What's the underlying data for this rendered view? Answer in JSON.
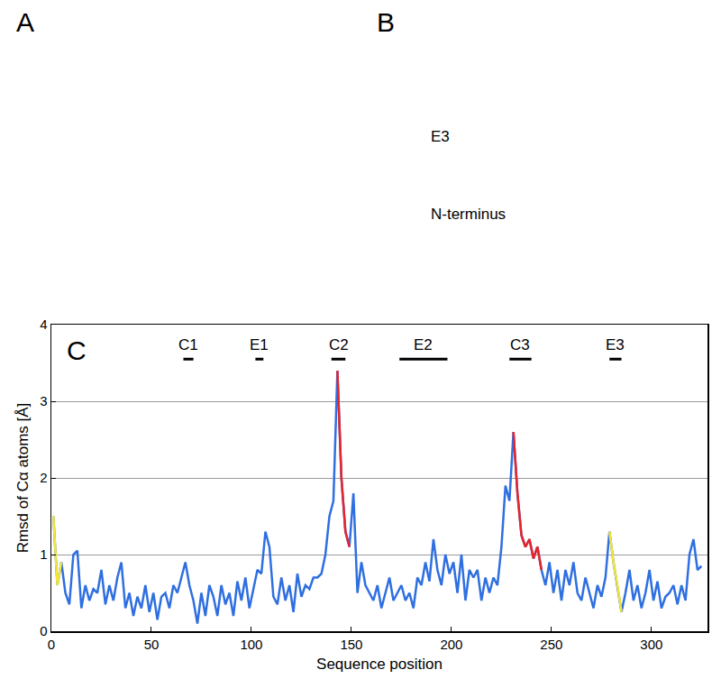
{
  "panel_labels": [
    "A",
    "B"
  ],
  "panel_B_annotations": [
    "E3",
    "N-terminus"
  ],
  "chart_data": {
    "type": "line",
    "panel_label": "C",
    "xlabel": "Sequence position",
    "ylabel": "Rmsd of Cα atoms [Å]",
    "xlim": [
      0,
      328
    ],
    "xticks": [
      0,
      50,
      100,
      150,
      200,
      250,
      300
    ],
    "ylim": [
      0,
      4
    ],
    "yticks": [
      0,
      1,
      2,
      3,
      4
    ],
    "grid": true,
    "regions": [
      {
        "label": "C1",
        "start": 66,
        "end": 71
      },
      {
        "label": "E1",
        "start": 102,
        "end": 106
      },
      {
        "label": "C2",
        "start": 140,
        "end": 147
      },
      {
        "label": "E2",
        "start": 174,
        "end": 198
      },
      {
        "label": "C3",
        "start": 229,
        "end": 240
      },
      {
        "label": "E3",
        "start": 279,
        "end": 285
      }
    ],
    "series": [
      {
        "color": "#2f6fe0",
        "x": [
          1,
          3,
          5,
          7,
          9,
          11,
          13,
          15,
          17,
          19,
          21,
          23,
          25,
          27,
          29,
          31,
          33,
          35,
          37,
          39,
          41,
          43,
          45,
          47,
          49,
          51,
          53,
          55,
          57,
          59,
          61,
          63,
          65,
          67,
          69,
          71,
          73,
          75,
          77,
          79,
          81,
          83,
          85,
          87,
          89,
          91,
          93,
          95,
          97,
          99,
          101,
          103,
          105,
          107,
          109,
          111,
          113,
          115,
          117,
          119,
          121,
          123,
          125,
          127,
          129,
          131,
          133,
          135,
          137,
          139,
          141,
          143,
          145,
          147,
          149,
          151,
          153,
          155,
          157,
          159,
          161,
          163,
          165,
          167,
          169,
          171,
          173,
          175,
          177,
          179,
          181,
          183,
          185,
          187,
          189,
          191,
          193,
          195,
          197,
          199,
          201,
          203,
          205,
          207,
          209,
          211,
          213,
          215,
          217,
          219,
          221,
          223,
          225,
          227,
          229,
          231,
          233,
          235,
          237,
          239,
          241,
          243,
          245,
          247,
          249,
          251,
          253,
          255,
          257,
          259,
          261,
          263,
          265,
          267,
          269,
          271,
          273,
          275,
          277,
          279,
          281,
          283,
          285,
          287,
          289,
          291,
          293,
          295,
          297,
          299,
          301,
          303,
          305,
          307,
          309,
          311,
          313,
          315,
          317,
          319,
          321,
          323,
          325
        ],
        "values": [
          1.5,
          0.6,
          0.9,
          0.5,
          0.35,
          1.0,
          1.05,
          0.3,
          0.6,
          0.4,
          0.55,
          0.5,
          0.8,
          0.35,
          0.6,
          0.4,
          0.7,
          0.9,
          0.3,
          0.5,
          0.2,
          0.45,
          0.3,
          0.6,
          0.25,
          0.5,
          0.15,
          0.45,
          0.5,
          0.3,
          0.6,
          0.5,
          0.7,
          0.9,
          0.6,
          0.4,
          0.1,
          0.5,
          0.2,
          0.6,
          0.45,
          0.2,
          0.6,
          0.35,
          0.5,
          0.2,
          0.65,
          0.4,
          0.7,
          0.3,
          0.55,
          0.8,
          0.75,
          1.3,
          1.1,
          0.45,
          0.35,
          0.7,
          0.4,
          0.6,
          0.25,
          0.75,
          0.45,
          0.6,
          0.55,
          0.7,
          0.7,
          0.75,
          1.0,
          1.5,
          1.7,
          3.4,
          2.0,
          1.3,
          1.1,
          1.8,
          0.5,
          0.9,
          0.6,
          0.5,
          0.4,
          0.6,
          0.3,
          0.5,
          0.7,
          0.4,
          0.5,
          0.6,
          0.4,
          0.5,
          0.3,
          0.7,
          0.6,
          0.9,
          0.65,
          1.2,
          0.8,
          0.6,
          1.0,
          0.75,
          0.9,
          0.5,
          1.0,
          0.4,
          0.8,
          0.7,
          0.8,
          0.4,
          0.7,
          0.5,
          0.7,
          0.6,
          1.1,
          1.9,
          1.7,
          2.6,
          1.8,
          1.25,
          1.1,
          1.2,
          0.95,
          1.1,
          0.8,
          0.6,
          0.9,
          0.5,
          0.8,
          0.4,
          0.8,
          0.6,
          0.9,
          0.5,
          0.4,
          0.7,
          0.5,
          0.3,
          0.6,
          0.45,
          0.7,
          1.3,
          0.9,
          0.6,
          0.25,
          0.5,
          0.8,
          0.4,
          0.6,
          0.3,
          0.5,
          0.8,
          0.4,
          0.65,
          0.3,
          0.45,
          0.5,
          0.6,
          0.35,
          0.6,
          0.4,
          1.0,
          1.2,
          0.8,
          0.85
        ]
      },
      {
        "color": "#e8242a",
        "x": [
          143,
          145,
          147,
          149,
          null,
          231,
          233,
          235,
          237,
          239,
          241,
          243,
          245
        ],
        "values": [
          3.4,
          2.0,
          1.3,
          1.1,
          null,
          2.6,
          1.8,
          1.25,
          1.1,
          1.2,
          0.95,
          1.1,
          0.8
        ]
      },
      {
        "color": "#f2e63a",
        "x": [
          1,
          3,
          5,
          null,
          279,
          281,
          283,
          285
        ],
        "values": [
          1.5,
          0.6,
          0.9,
          null,
          1.3,
          0.9,
          0.6,
          0.25
        ]
      }
    ]
  }
}
